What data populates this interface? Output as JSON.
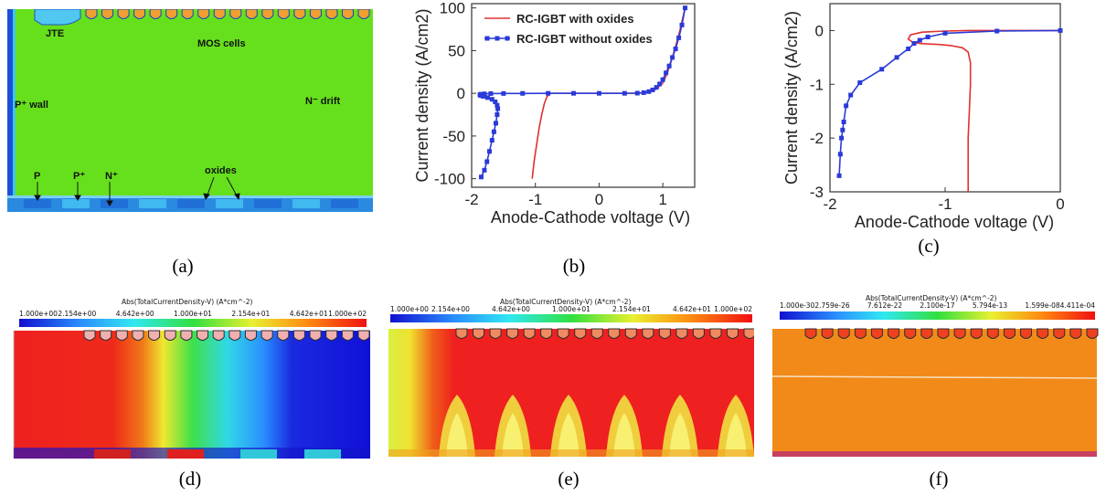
{
  "panels": {
    "a": {
      "caption": "(a)",
      "labels": {
        "jte": "JTE",
        "mos_cells": "MOS cells",
        "p_wall": "P⁺ wall",
        "n_drift": "N⁻ drift",
        "p": "P",
        "p_plus": "P⁺",
        "n_plus": "N⁺",
        "oxides": "oxides"
      },
      "colors": {
        "drift": "#66e01c",
        "contact": "#1f8fd8",
        "wall": "#1c4fd8"
      }
    },
    "b": {
      "caption": "(b)"
    },
    "c": {
      "caption": "(c)"
    },
    "d": {
      "caption": "(d)",
      "colorbar_title": "Abs(TotalCurrentDensity-V) (A*cm^-2)",
      "colorbar_ticks": [
        "1.000e+00",
        "2.154e+00",
        "4.642e+00",
        "1.000e+01",
        "2.154e+01",
        "4.642e+01",
        "1.000e+02"
      ]
    },
    "e": {
      "caption": "(e)",
      "colorbar_title": "Abs(TotalCurrentDensity-V) (A*cm^-2)",
      "colorbar_ticks": [
        "1.000e+00",
        "2.154e+00",
        "4.642e+00",
        "1.000e+01",
        "2.154e+01",
        "4.642e+01",
        "1.000e+02"
      ]
    },
    "f": {
      "caption": "(f)",
      "colorbar_title": "Abs(TotalCurrentDensity-V) (A*cm^-2)",
      "colorbar_ticks": [
        "1.000e-30",
        "2.759e-26",
        "7.612e-22",
        "2.100e-17",
        "5.794e-13",
        "1.599e-08",
        "4.411e-04"
      ]
    }
  },
  "chart_data": [
    {
      "panel": "b",
      "type": "line",
      "xlabel": "Anode-Cathode voltage (V)",
      "ylabel": "Current density (A/cm2)",
      "xlim": [
        -2,
        1.5
      ],
      "ylim": [
        -110,
        105
      ],
      "xticks": [
        -2,
        -1,
        0,
        1
      ],
      "yticks": [
        -100,
        -50,
        0,
        50,
        100
      ],
      "legend_position": "top-left",
      "series": [
        {
          "name": "RC-IGBT with oxides",
          "color": "#e03030",
          "marker": "none",
          "x": [
            -1.05,
            -1.02,
            -0.98,
            -0.94,
            -0.9,
            -0.86,
            -0.82,
            -0.78,
            -0.76,
            -0.7,
            -0.5,
            0.0,
            0.5,
            0.7,
            0.8,
            0.9,
            1.0,
            1.05,
            1.1,
            1.15,
            1.2,
            1.25,
            1.3,
            1.35
          ],
          "y": [
            -100,
            -80,
            -60,
            -40,
            -25,
            -12,
            -4,
            -1,
            0,
            0,
            0,
            0,
            0,
            0.5,
            2,
            5,
            12,
            20,
            30,
            42,
            55,
            68,
            84,
            100
          ]
        },
        {
          "name": "RC-IGBT without oxides",
          "color": "#2a3ad8",
          "marker": "square",
          "x": [
            -1.85,
            -1.8,
            -1.76,
            -1.72,
            -1.68,
            -1.65,
            -1.62,
            -1.6,
            -1.59,
            -1.6,
            -1.63,
            -1.68,
            -1.75,
            -1.82,
            -1.86,
            -1.87,
            -1.85,
            -1.8,
            -1.7,
            -1.5,
            -1.2,
            -0.8,
            -0.4,
            0.0,
            0.4,
            0.6,
            0.7,
            0.78,
            0.84,
            0.9,
            0.95,
            1.0,
            1.05,
            1.1,
            1.15,
            1.2,
            1.25,
            1.3,
            1.35
          ],
          "y": [
            -98,
            -90,
            -80,
            -68,
            -55,
            -45,
            -35,
            -25,
            -18,
            -14,
            -10,
            -7,
            -5,
            -3.5,
            -2.5,
            -1.5,
            -1,
            -0.6,
            -0.3,
            -0.2,
            -0.1,
            0,
            0,
            0,
            0,
            0.2,
            0.8,
            2,
            4,
            7,
            11,
            16,
            24,
            32,
            42,
            52,
            65,
            80,
            100
          ]
        }
      ]
    },
    {
      "panel": "c",
      "type": "line",
      "xlabel": "Anode-Cathode voltage (V)",
      "ylabel": "Current density (A/cm2)",
      "xlim": [
        -2,
        0
      ],
      "ylim": [
        -3,
        0.5
      ],
      "xticks": [
        -2,
        -1,
        0
      ],
      "yticks": [
        -3,
        -2,
        -1,
        0
      ],
      "series": [
        {
          "name": "RC-IGBT with oxides",
          "color": "#e03030",
          "marker": "none",
          "x": [
            -0.8,
            -0.8,
            -0.8,
            -0.79,
            -0.78,
            -0.78,
            -0.8,
            -0.85,
            -0.95,
            -1.05,
            -1.15,
            -1.22,
            -1.28,
            -1.32,
            -1.3,
            -1.2,
            -1.0,
            -0.8,
            -0.6,
            -0.3,
            0.0
          ],
          "y": [
            -3.0,
            -2.5,
            -2.0,
            -1.5,
            -1.0,
            -0.6,
            -0.4,
            -0.32,
            -0.28,
            -0.26,
            -0.25,
            -0.24,
            -0.22,
            -0.16,
            -0.08,
            -0.03,
            -0.01,
            0,
            0,
            0,
            0
          ]
        },
        {
          "name": "RC-IGBT without oxides",
          "color": "#2a3ad8",
          "marker": "square",
          "x": [
            -1.92,
            -1.91,
            -1.9,
            -1.89,
            -1.88,
            -1.86,
            -1.82,
            -1.74,
            -1.55,
            -1.42,
            -1.32,
            -1.27,
            -1.22,
            -1.15,
            -1.0,
            -0.55,
            0.0
          ],
          "y": [
            -2.7,
            -2.3,
            -2.0,
            -1.85,
            -1.7,
            -1.4,
            -1.2,
            -0.97,
            -0.72,
            -0.5,
            -0.34,
            -0.24,
            -0.18,
            -0.12,
            -0.05,
            -0.01,
            0
          ]
        }
      ]
    }
  ]
}
